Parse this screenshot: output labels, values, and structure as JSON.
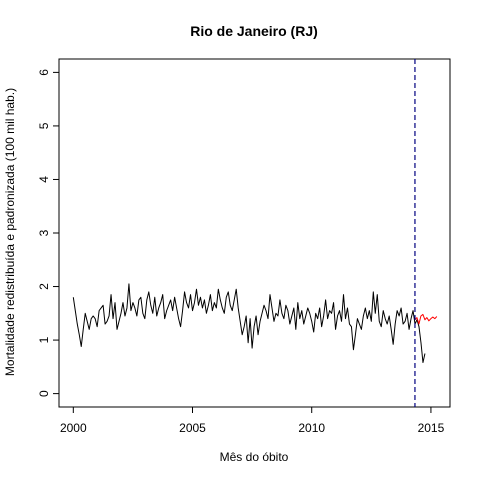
{
  "chart_data": {
    "type": "line",
    "title": "Rio de Janeiro (RJ)",
    "xlabel": "Mês do óbito",
    "ylabel": "Mortalidade redistribuída e padronizada (100 mil hab.)",
    "xlim": [
      1999.4,
      2015.8
    ],
    "ylim": [
      -0.25,
      6.25
    ],
    "x_ticks": [
      2000,
      2005,
      2010,
      2015
    ],
    "y_ticks": [
      0,
      1,
      2,
      3,
      4,
      5,
      6
    ],
    "grid": false,
    "legend": "none",
    "vline": {
      "x": 2014.33,
      "color": "#000080",
      "style": "dashed"
    },
    "series": [
      {
        "color": "#000000",
        "x_start": 2000.0,
        "x_step": 0.08333,
        "values": [
          1.8,
          1.55,
          1.3,
          1.1,
          0.88,
          1.2,
          1.5,
          1.35,
          1.2,
          1.4,
          1.45,
          1.4,
          1.25,
          1.55,
          1.6,
          1.65,
          1.3,
          1.35,
          1.45,
          1.85,
          1.4,
          1.7,
          1.2,
          1.35,
          1.5,
          1.7,
          1.45,
          1.6,
          2.05,
          1.55,
          1.7,
          1.6,
          1.45,
          1.75,
          1.8,
          1.5,
          1.4,
          1.75,
          1.9,
          1.65,
          1.5,
          1.8,
          1.45,
          1.6,
          1.7,
          1.85,
          1.4,
          1.55,
          1.65,
          1.75,
          1.55,
          1.8,
          1.6,
          1.4,
          1.25,
          1.55,
          1.9,
          1.7,
          1.6,
          1.85,
          1.55,
          1.7,
          1.95,
          1.65,
          1.8,
          1.6,
          1.75,
          1.5,
          1.65,
          1.85,
          1.55,
          1.7,
          1.6,
          1.95,
          1.75,
          1.6,
          1.5,
          1.8,
          1.9,
          1.65,
          1.55,
          1.75,
          1.95,
          1.6,
          1.35,
          1.1,
          1.25,
          1.45,
          0.95,
          1.4,
          0.85,
          1.25,
          1.45,
          1.1,
          1.35,
          1.5,
          1.65,
          1.55,
          1.4,
          1.85,
          1.6,
          1.35,
          1.5,
          1.45,
          1.75,
          1.5,
          1.4,
          1.65,
          1.55,
          1.3,
          1.45,
          1.6,
          1.2,
          1.7,
          1.4,
          1.55,
          1.3,
          1.45,
          1.6,
          1.5,
          1.35,
          1.15,
          1.5,
          1.4,
          1.6,
          1.25,
          1.45,
          1.75,
          1.4,
          1.55,
          1.5,
          1.7,
          1.2,
          1.45,
          1.55,
          1.35,
          1.85,
          1.4,
          1.6,
          1.3,
          1.25,
          0.82,
          1.1,
          1.4,
          1.3,
          1.2,
          1.45,
          1.6,
          1.4,
          1.55,
          1.35,
          1.9,
          1.5,
          1.85,
          1.35,
          1.25,
          1.55,
          1.4,
          1.3,
          1.45,
          1.2,
          0.92,
          1.3,
          1.55,
          1.45,
          1.6,
          1.3,
          1.35,
          1.5,
          1.2,
          1.4,
          1.55,
          1.3,
          1.38,
          1.25,
          0.95,
          0.58,
          0.75
        ]
      },
      {
        "color": "#ff0000",
        "x_start": 2014.33,
        "x_step": 0.08333,
        "values": [
          1.38,
          1.42,
          1.3,
          1.45,
          1.48,
          1.38,
          1.42,
          1.36,
          1.4,
          1.43,
          1.4,
          1.44
        ]
      }
    ]
  }
}
